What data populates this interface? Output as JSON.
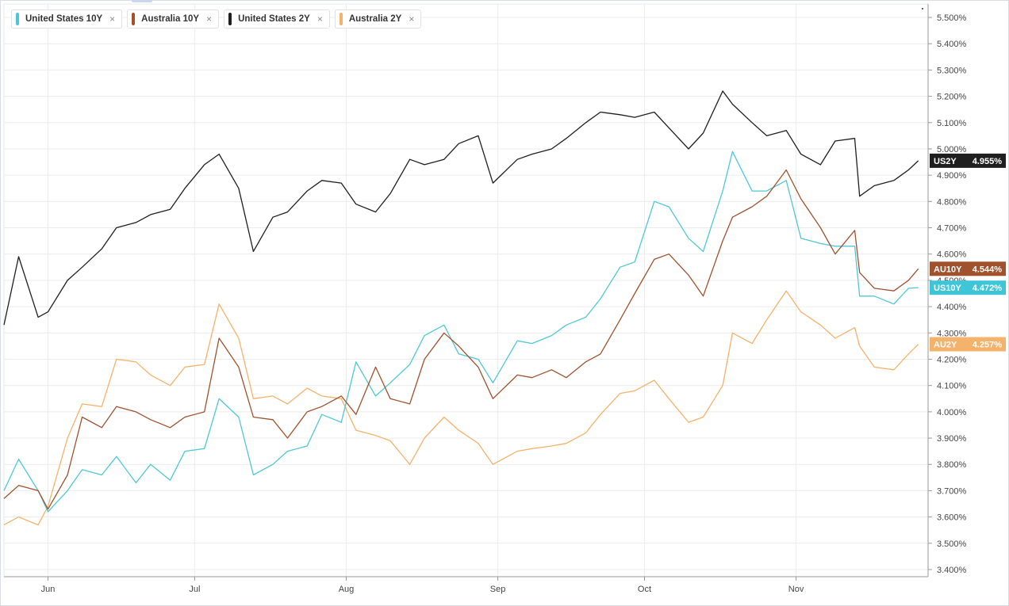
{
  "legend": [
    {
      "label": "United States 10Y",
      "color": "#4fc8d6",
      "close": "×"
    },
    {
      "label": "Australia 10Y",
      "color": "#a0522d",
      "close": "×"
    },
    {
      "label": "United States 2Y",
      "color": "#1f1f1f",
      "close": "×"
    },
    {
      "label": "Australia 2Y",
      "color": "#f5b26b",
      "close": "×"
    }
  ],
  "chart_data": {
    "type": "line",
    "ylim": [
      3.4,
      5.55
    ],
    "yticks": [
      3.4,
      3.5,
      3.6,
      3.7,
      3.8,
      3.9,
      4.0,
      4.1,
      4.2,
      4.3,
      4.4,
      4.5,
      4.6,
      4.7,
      4.8,
      4.9,
      5.0,
      5.1,
      5.2,
      5.3,
      5.4,
      5.5
    ],
    "ytick_labels": [
      "3.400%",
      "3.500%",
      "3.600%",
      "3.700%",
      "3.800%",
      "3.900%",
      "4.000%",
      "4.100%",
      "4.200%",
      "4.300%",
      "4.400%",
      "4.500%",
      "4.600%",
      "4.700%",
      "4.800%",
      "4.900%",
      "5.000%",
      "5.100%",
      "5.200%",
      "5.300%",
      "5.400%",
      "5.500%"
    ],
    "xlim": [
      "2023-05-23",
      "2023-11-28"
    ],
    "xticks": [
      {
        "date": "2023-06-01",
        "label": "Jun"
      },
      {
        "date": "2023-07-01",
        "label": "Jul"
      },
      {
        "date": "2023-08-01",
        "label": "Aug"
      },
      {
        "date": "2023-09-01",
        "label": "Sep"
      },
      {
        "date": "2023-10-01",
        "label": "Oct"
      },
      {
        "date": "2023-11-01",
        "label": "Nov"
      }
    ],
    "grid": true,
    "legend_placement": "top-left",
    "series": [
      {
        "name": "United States 10Y",
        "short": "US10Y",
        "last_label": "4.472%",
        "color": "#4fc8d6",
        "label_bg": "#3ec6d8",
        "points": [
          [
            "2023-05-23",
            3.7
          ],
          [
            "2023-05-26",
            3.82
          ],
          [
            "2023-05-30",
            3.7
          ],
          [
            "2023-06-01",
            3.62
          ],
          [
            "2023-06-05",
            3.7
          ],
          [
            "2023-06-08",
            3.78
          ],
          [
            "2023-06-12",
            3.76
          ],
          [
            "2023-06-15",
            3.83
          ],
          [
            "2023-06-19",
            3.73
          ],
          [
            "2023-06-22",
            3.8
          ],
          [
            "2023-06-26",
            3.74
          ],
          [
            "2023-06-29",
            3.85
          ],
          [
            "2023-07-03",
            3.86
          ],
          [
            "2023-07-06",
            4.05
          ],
          [
            "2023-07-10",
            3.98
          ],
          [
            "2023-07-13",
            3.76
          ],
          [
            "2023-07-17",
            3.8
          ],
          [
            "2023-07-20",
            3.85
          ],
          [
            "2023-07-24",
            3.87
          ],
          [
            "2023-07-27",
            3.99
          ],
          [
            "2023-07-31",
            3.96
          ],
          [
            "2023-08-03",
            4.19
          ],
          [
            "2023-08-07",
            4.06
          ],
          [
            "2023-08-10",
            4.11
          ],
          [
            "2023-08-14",
            4.18
          ],
          [
            "2023-08-17",
            4.29
          ],
          [
            "2023-08-21",
            4.33
          ],
          [
            "2023-08-24",
            4.22
          ],
          [
            "2023-08-28",
            4.2
          ],
          [
            "2023-08-31",
            4.11
          ],
          [
            "2023-09-05",
            4.27
          ],
          [
            "2023-09-08",
            4.26
          ],
          [
            "2023-09-12",
            4.29
          ],
          [
            "2023-09-15",
            4.33
          ],
          [
            "2023-09-19",
            4.36
          ],
          [
            "2023-09-22",
            4.43
          ],
          [
            "2023-09-26",
            4.55
          ],
          [
            "2023-09-29",
            4.57
          ],
          [
            "2023-10-03",
            4.8
          ],
          [
            "2023-10-06",
            4.78
          ],
          [
            "2023-10-10",
            4.66
          ],
          [
            "2023-10-13",
            4.61
          ],
          [
            "2023-10-17",
            4.84
          ],
          [
            "2023-10-19",
            4.99
          ],
          [
            "2023-10-23",
            4.84
          ],
          [
            "2023-10-26",
            4.84
          ],
          [
            "2023-10-30",
            4.88
          ],
          [
            "2023-11-02",
            4.66
          ],
          [
            "2023-11-06",
            4.64
          ],
          [
            "2023-11-09",
            4.63
          ],
          [
            "2023-11-13",
            4.63
          ],
          [
            "2023-11-14",
            4.44
          ],
          [
            "2023-11-17",
            4.44
          ],
          [
            "2023-11-21",
            4.41
          ],
          [
            "2023-11-24",
            4.47
          ],
          [
            "2023-11-26",
            4.472
          ]
        ]
      },
      {
        "name": "Australia 10Y",
        "short": "AU10Y",
        "last_label": "4.544%",
        "color": "#a0522d",
        "label_bg": "#a0522d",
        "points": [
          [
            "2023-05-23",
            3.67
          ],
          [
            "2023-05-26",
            3.72
          ],
          [
            "2023-05-30",
            3.7
          ],
          [
            "2023-06-01",
            3.63
          ],
          [
            "2023-06-05",
            3.76
          ],
          [
            "2023-06-08",
            3.98
          ],
          [
            "2023-06-12",
            3.94
          ],
          [
            "2023-06-15",
            4.02
          ],
          [
            "2023-06-19",
            4.0
          ],
          [
            "2023-06-22",
            3.97
          ],
          [
            "2023-06-26",
            3.94
          ],
          [
            "2023-06-29",
            3.98
          ],
          [
            "2023-07-03",
            4.0
          ],
          [
            "2023-07-06",
            4.28
          ],
          [
            "2023-07-10",
            4.17
          ],
          [
            "2023-07-13",
            3.98
          ],
          [
            "2023-07-17",
            3.97
          ],
          [
            "2023-07-20",
            3.9
          ],
          [
            "2023-07-24",
            4.0
          ],
          [
            "2023-07-27",
            4.02
          ],
          [
            "2023-07-31",
            4.06
          ],
          [
            "2023-08-03",
            3.99
          ],
          [
            "2023-08-07",
            4.17
          ],
          [
            "2023-08-10",
            4.05
          ],
          [
            "2023-08-14",
            4.03
          ],
          [
            "2023-08-17",
            4.2
          ],
          [
            "2023-08-21",
            4.3
          ],
          [
            "2023-08-24",
            4.25
          ],
          [
            "2023-08-28",
            4.17
          ],
          [
            "2023-08-31",
            4.05
          ],
          [
            "2023-09-05",
            4.14
          ],
          [
            "2023-09-08",
            4.13
          ],
          [
            "2023-09-12",
            4.16
          ],
          [
            "2023-09-15",
            4.13
          ],
          [
            "2023-09-19",
            4.19
          ],
          [
            "2023-09-22",
            4.22
          ],
          [
            "2023-09-26",
            4.35
          ],
          [
            "2023-09-29",
            4.45
          ],
          [
            "2023-10-03",
            4.58
          ],
          [
            "2023-10-06",
            4.6
          ],
          [
            "2023-10-10",
            4.52
          ],
          [
            "2023-10-13",
            4.44
          ],
          [
            "2023-10-17",
            4.65
          ],
          [
            "2023-10-19",
            4.74
          ],
          [
            "2023-10-23",
            4.78
          ],
          [
            "2023-10-26",
            4.82
          ],
          [
            "2023-10-30",
            4.92
          ],
          [
            "2023-11-02",
            4.81
          ],
          [
            "2023-11-06",
            4.7
          ],
          [
            "2023-11-09",
            4.6
          ],
          [
            "2023-11-13",
            4.69
          ],
          [
            "2023-11-14",
            4.53
          ],
          [
            "2023-11-17",
            4.47
          ],
          [
            "2023-11-21",
            4.46
          ],
          [
            "2023-11-24",
            4.5
          ],
          [
            "2023-11-26",
            4.544
          ]
        ]
      },
      {
        "name": "United States 2Y",
        "short": "US2Y",
        "last_label": "4.955%",
        "color": "#1f1f1f",
        "label_bg": "#1f1f1f",
        "points": [
          [
            "2023-05-23",
            4.33
          ],
          [
            "2023-05-26",
            4.59
          ],
          [
            "2023-05-30",
            4.36
          ],
          [
            "2023-06-01",
            4.38
          ],
          [
            "2023-06-05",
            4.5
          ],
          [
            "2023-06-08",
            4.55
          ],
          [
            "2023-06-12",
            4.62
          ],
          [
            "2023-06-15",
            4.7
          ],
          [
            "2023-06-19",
            4.72
          ],
          [
            "2023-06-22",
            4.75
          ],
          [
            "2023-06-26",
            4.77
          ],
          [
            "2023-06-29",
            4.85
          ],
          [
            "2023-07-03",
            4.94
          ],
          [
            "2023-07-06",
            4.98
          ],
          [
            "2023-07-10",
            4.85
          ],
          [
            "2023-07-13",
            4.61
          ],
          [
            "2023-07-17",
            4.74
          ],
          [
            "2023-07-20",
            4.76
          ],
          [
            "2023-07-24",
            4.84
          ],
          [
            "2023-07-27",
            4.88
          ],
          [
            "2023-07-31",
            4.87
          ],
          [
            "2023-08-03",
            4.79
          ],
          [
            "2023-08-07",
            4.76
          ],
          [
            "2023-08-10",
            4.83
          ],
          [
            "2023-08-14",
            4.96
          ],
          [
            "2023-08-17",
            4.94
          ],
          [
            "2023-08-21",
            4.96
          ],
          [
            "2023-08-24",
            5.02
          ],
          [
            "2023-08-28",
            5.05
          ],
          [
            "2023-08-31",
            4.87
          ],
          [
            "2023-09-05",
            4.96
          ],
          [
            "2023-09-08",
            4.98
          ],
          [
            "2023-09-12",
            5.0
          ],
          [
            "2023-09-15",
            5.04
          ],
          [
            "2023-09-19",
            5.1
          ],
          [
            "2023-09-22",
            5.14
          ],
          [
            "2023-09-26",
            5.13
          ],
          [
            "2023-09-29",
            5.12
          ],
          [
            "2023-10-03",
            5.14
          ],
          [
            "2023-10-06",
            5.08
          ],
          [
            "2023-10-10",
            5.0
          ],
          [
            "2023-10-13",
            5.06
          ],
          [
            "2023-10-17",
            5.22
          ],
          [
            "2023-10-19",
            5.17
          ],
          [
            "2023-10-23",
            5.1
          ],
          [
            "2023-10-26",
            5.05
          ],
          [
            "2023-10-30",
            5.07
          ],
          [
            "2023-11-02",
            4.98
          ],
          [
            "2023-11-06",
            4.94
          ],
          [
            "2023-11-09",
            5.03
          ],
          [
            "2023-11-13",
            5.04
          ],
          [
            "2023-11-14",
            4.82
          ],
          [
            "2023-11-17",
            4.86
          ],
          [
            "2023-11-21",
            4.88
          ],
          [
            "2023-11-24",
            4.92
          ],
          [
            "2023-11-26",
            4.955
          ]
        ]
      },
      {
        "name": "Australia 2Y",
        "short": "AU2Y",
        "last_label": "4.257%",
        "color": "#f5b26b",
        "label_bg": "#f5b26b",
        "points": [
          [
            "2023-05-23",
            3.57
          ],
          [
            "2023-05-26",
            3.6
          ],
          [
            "2023-05-30",
            3.57
          ],
          [
            "2023-06-01",
            3.64
          ],
          [
            "2023-06-05",
            3.9
          ],
          [
            "2023-06-08",
            4.03
          ],
          [
            "2023-06-12",
            4.02
          ],
          [
            "2023-06-15",
            4.2
          ],
          [
            "2023-06-19",
            4.19
          ],
          [
            "2023-06-22",
            4.14
          ],
          [
            "2023-06-26",
            4.1
          ],
          [
            "2023-06-29",
            4.17
          ],
          [
            "2023-07-03",
            4.18
          ],
          [
            "2023-07-06",
            4.41
          ],
          [
            "2023-07-10",
            4.28
          ],
          [
            "2023-07-13",
            4.05
          ],
          [
            "2023-07-17",
            4.06
          ],
          [
            "2023-07-20",
            4.03
          ],
          [
            "2023-07-24",
            4.09
          ],
          [
            "2023-07-27",
            4.06
          ],
          [
            "2023-07-31",
            4.05
          ],
          [
            "2023-08-03",
            3.93
          ],
          [
            "2023-08-07",
            3.91
          ],
          [
            "2023-08-10",
            3.89
          ],
          [
            "2023-08-14",
            3.8
          ],
          [
            "2023-08-17",
            3.9
          ],
          [
            "2023-08-21",
            3.98
          ],
          [
            "2023-08-24",
            3.93
          ],
          [
            "2023-08-28",
            3.88
          ],
          [
            "2023-08-31",
            3.8
          ],
          [
            "2023-09-05",
            3.85
          ],
          [
            "2023-09-08",
            3.86
          ],
          [
            "2023-09-12",
            3.87
          ],
          [
            "2023-09-15",
            3.88
          ],
          [
            "2023-09-19",
            3.92
          ],
          [
            "2023-09-22",
            3.99
          ],
          [
            "2023-09-26",
            4.07
          ],
          [
            "2023-09-29",
            4.08
          ],
          [
            "2023-10-03",
            4.12
          ],
          [
            "2023-10-06",
            4.05
          ],
          [
            "2023-10-10",
            3.96
          ],
          [
            "2023-10-13",
            3.98
          ],
          [
            "2023-10-17",
            4.1
          ],
          [
            "2023-10-19",
            4.3
          ],
          [
            "2023-10-23",
            4.26
          ],
          [
            "2023-10-26",
            4.35
          ],
          [
            "2023-10-30",
            4.46
          ],
          [
            "2023-11-02",
            4.38
          ],
          [
            "2023-11-06",
            4.33
          ],
          [
            "2023-11-09",
            4.28
          ],
          [
            "2023-11-13",
            4.32
          ],
          [
            "2023-11-14",
            4.25
          ],
          [
            "2023-11-17",
            4.17
          ],
          [
            "2023-11-21",
            4.16
          ],
          [
            "2023-11-24",
            4.22
          ],
          [
            "2023-11-26",
            4.257
          ]
        ]
      }
    ]
  }
}
